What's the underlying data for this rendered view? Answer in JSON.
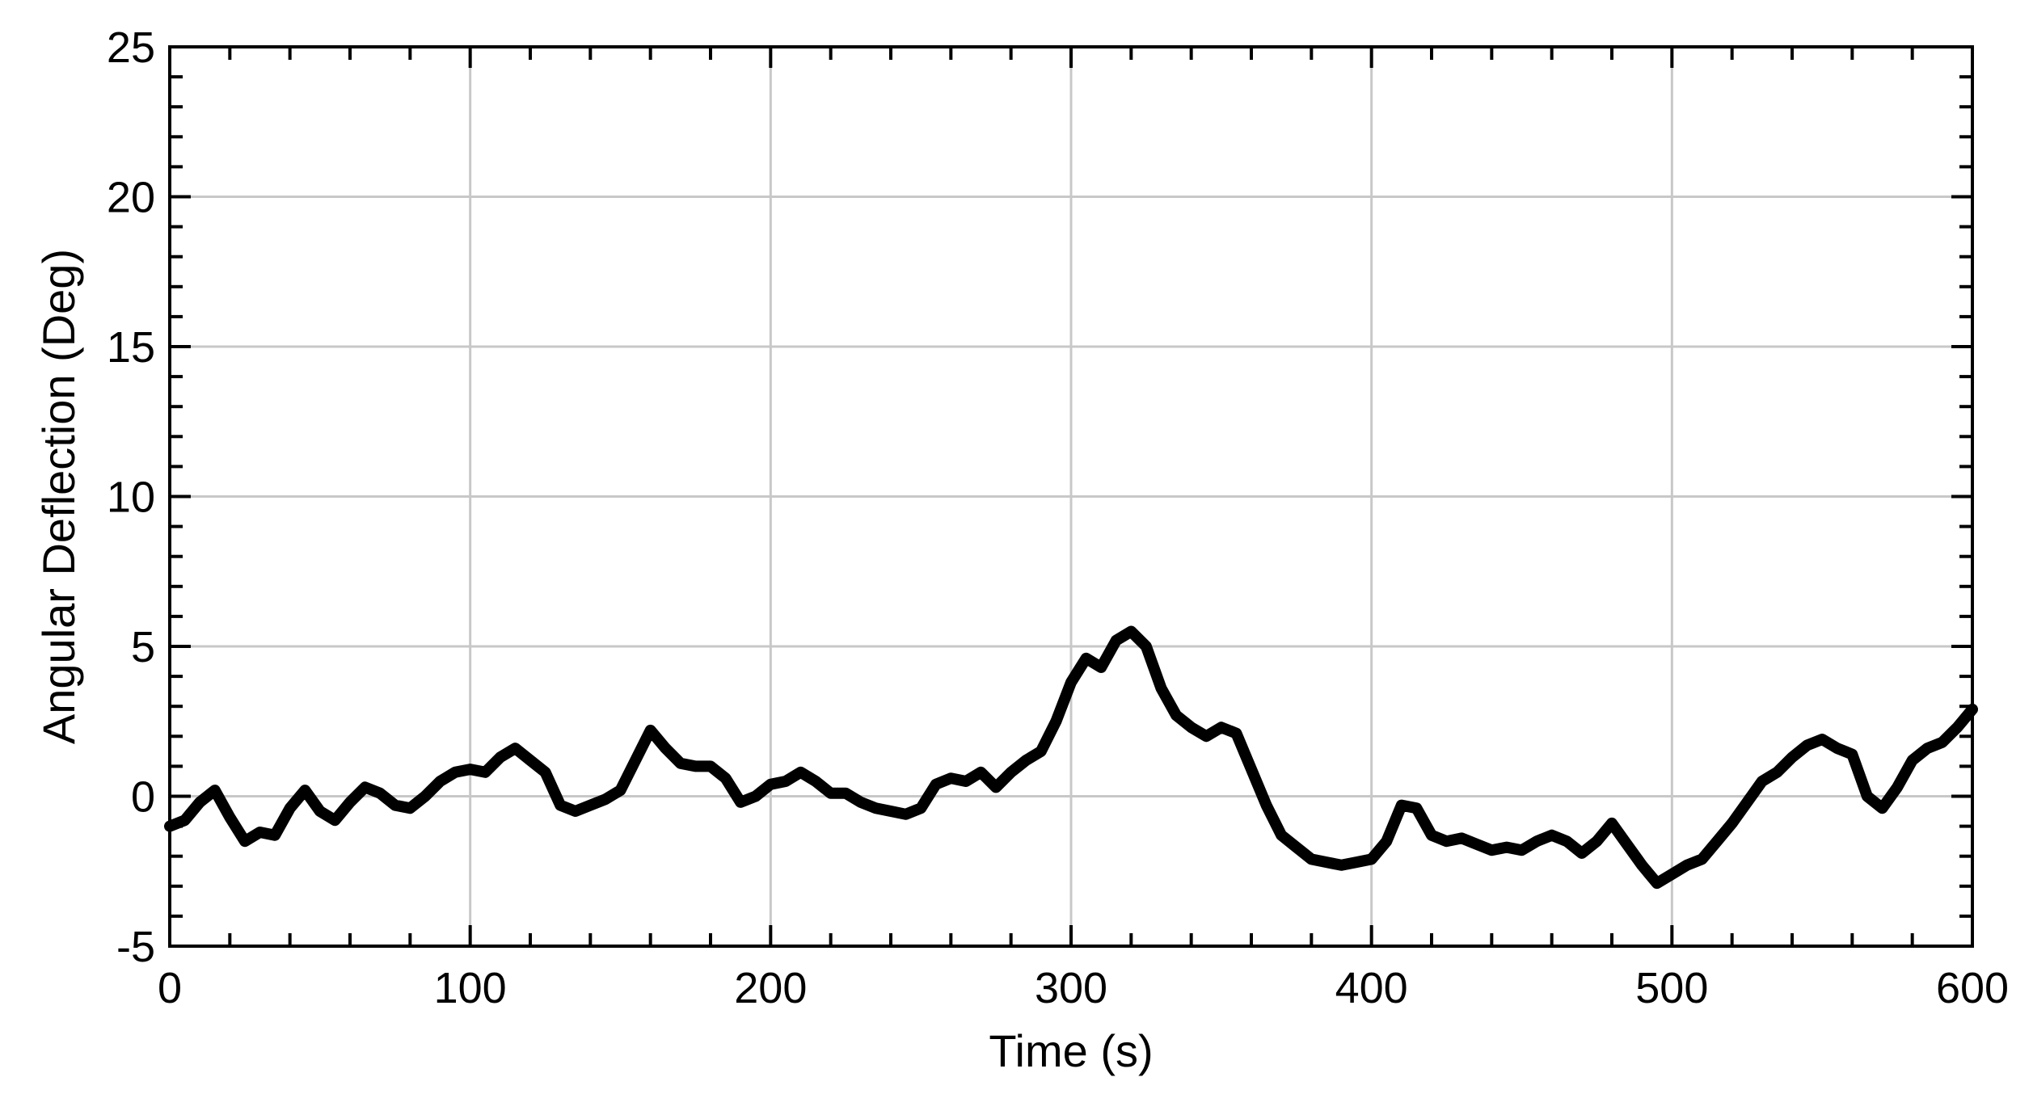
{
  "chart_data": {
    "type": "line",
    "title": "",
    "xlabel": "Time (s)",
    "ylabel": "Angular Deflection (Deg)",
    "xlim": [
      0,
      600
    ],
    "ylim": [
      -5,
      25
    ],
    "x_ticks": [
      0,
      100,
      200,
      300,
      400,
      500,
      600
    ],
    "x_tick_labels": [
      "0",
      "100",
      "200",
      "300",
      "400",
      "500",
      "600"
    ],
    "y_ticks": [
      -5,
      0,
      5,
      10,
      15,
      20,
      25
    ],
    "y_tick_labels": [
      "-5",
      "0",
      "5",
      "10",
      "15",
      "20",
      "25"
    ],
    "grid": true,
    "legend": "none",
    "line_color": "#000000",
    "grid_color": "#c8c8c8",
    "series": [
      {
        "x": [
          0,
          5,
          10,
          15,
          20,
          25,
          30,
          35,
          40,
          45,
          50,
          55,
          60,
          65,
          70,
          75,
          80,
          85,
          90,
          95,
          100,
          105,
          110,
          115,
          120,
          125,
          130,
          135,
          140,
          145,
          150,
          155,
          160,
          165,
          170,
          175,
          180,
          185,
          190,
          195,
          200,
          205,
          210,
          215,
          220,
          225,
          230,
          235,
          240,
          245,
          250,
          255,
          260,
          265,
          270,
          275,
          280,
          285,
          290,
          295,
          300,
          305,
          310,
          315,
          320,
          325,
          330,
          335,
          340,
          345,
          350,
          355,
          360,
          365,
          370,
          375,
          380,
          385,
          390,
          395,
          400,
          405,
          410,
          415,
          420,
          425,
          430,
          435,
          440,
          445,
          450,
          455,
          460,
          465,
          470,
          475,
          480,
          485,
          490,
          495,
          500,
          505,
          510,
          515,
          520,
          525,
          530,
          535,
          540,
          545,
          550,
          555,
          560,
          565,
          570,
          575,
          580,
          585,
          590,
          595,
          600
        ],
        "values": [
          -1.0,
          -0.8,
          -0.2,
          0.2,
          -0.7,
          -1.5,
          -1.2,
          -1.3,
          -0.4,
          0.2,
          -0.5,
          -0.8,
          -0.2,
          0.3,
          0.1,
          -0.3,
          -0.4,
          0.0,
          0.5,
          0.8,
          0.9,
          0.8,
          1.3,
          1.6,
          1.2,
          0.8,
          -0.3,
          -0.5,
          -0.3,
          -0.1,
          0.2,
          1.2,
          2.2,
          1.6,
          1.1,
          1.0,
          1.0,
          0.6,
          -0.2,
          0.0,
          0.4,
          0.5,
          0.8,
          0.5,
          0.1,
          0.1,
          -0.2,
          -0.4,
          -0.5,
          -0.6,
          -0.4,
          0.4,
          0.6,
          0.5,
          0.8,
          0.3,
          0.8,
          1.2,
          1.5,
          2.5,
          3.8,
          4.6,
          4.3,
          5.2,
          5.5,
          5.0,
          3.6,
          2.7,
          2.3,
          2.0,
          2.3,
          2.1,
          0.9,
          -0.3,
          -1.3,
          -1.7,
          -2.1,
          -2.2,
          -2.3,
          -2.2,
          -2.1,
          -1.5,
          -0.3,
          -0.4,
          -1.3,
          -1.5,
          -1.4,
          -1.6,
          -1.8,
          -1.7,
          -1.8,
          -1.5,
          -1.3,
          -1.5,
          -1.9,
          -1.5,
          -0.9,
          -1.6,
          -2.3,
          -2.9,
          -2.6,
          -2.3,
          -2.1,
          -1.5,
          -0.9,
          -0.2,
          0.5,
          0.8,
          1.3,
          1.7,
          1.9,
          1.6,
          1.4,
          0.0,
          -0.4,
          0.3,
          1.2,
          1.6,
          1.8,
          2.3,
          2.9
        ]
      }
    ]
  }
}
